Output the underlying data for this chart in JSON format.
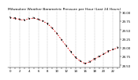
{
  "title": "Milwaukee Weather Barometric Pressure per Hour (Last 24 Hours)",
  "hours": [
    0,
    1,
    2,
    3,
    4,
    5,
    6,
    7,
    8,
    9,
    10,
    11,
    12,
    13,
    14,
    15,
    16,
    17,
    18,
    19,
    20,
    21,
    22,
    23
  ],
  "pressure": [
    29.85,
    29.83,
    29.8,
    29.78,
    29.82,
    29.84,
    29.8,
    29.75,
    29.68,
    29.55,
    29.4,
    29.22,
    29.05,
    28.88,
    28.72,
    28.62,
    28.55,
    28.6,
    28.68,
    28.75,
    28.82,
    28.9,
    28.95,
    29.0
  ],
  "ylim": [
    28.45,
    30.05
  ],
  "ytick_values": [
    28.5,
    28.75,
    29.0,
    29.25,
    29.5,
    29.75,
    30.0
  ],
  "ytick_labels": [
    "28.50",
    "28.75",
    "29.00",
    "29.25",
    "29.50",
    "29.75",
    "30.00"
  ],
  "line_color": "#dd0000",
  "marker_color": "#111111",
  "grid_color": "#999999",
  "bg_color": "#ffffff",
  "title_fontsize": 3.2,
  "tick_fontsize": 2.8,
  "grid_hours": [
    0,
    2,
    4,
    6,
    8,
    10,
    12,
    14,
    16,
    18,
    20,
    22
  ]
}
